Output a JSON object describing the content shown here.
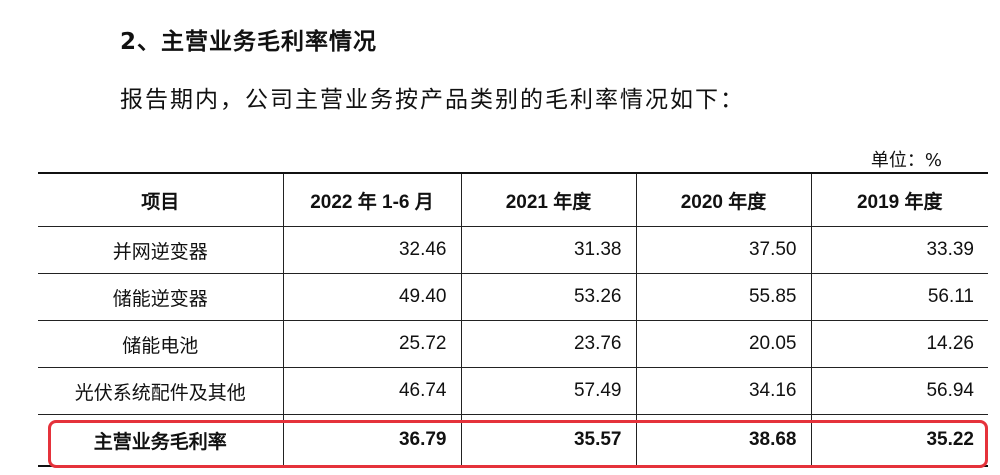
{
  "heading": "2、主营业务毛利率情况",
  "intro": "报告期内，公司主营业务按产品类别的毛利率情况如下：",
  "unit": "单位：%",
  "table": {
    "headers": [
      "项目",
      "2022 年 1-6 月",
      "2021 年度",
      "2020 年度",
      "2019 年度"
    ],
    "rows": [
      {
        "label": "并网逆变器",
        "values": [
          "32.46",
          "31.38",
          "37.50",
          "33.39"
        ]
      },
      {
        "label": "储能逆变器",
        "values": [
          "49.40",
          "53.26",
          "55.85",
          "56.11"
        ]
      },
      {
        "label": "储能电池",
        "values": [
          "25.72",
          "23.76",
          "20.05",
          "14.26"
        ]
      },
      {
        "label": "光伏系统配件及其他",
        "values": [
          "46.74",
          "57.49",
          "34.16",
          "56.94"
        ]
      }
    ],
    "total": {
      "label": "主营业务毛利率",
      "values": [
        "36.79",
        "35.57",
        "38.68",
        "35.22"
      ]
    }
  },
  "colors": {
    "highlight": "#e5323b"
  }
}
